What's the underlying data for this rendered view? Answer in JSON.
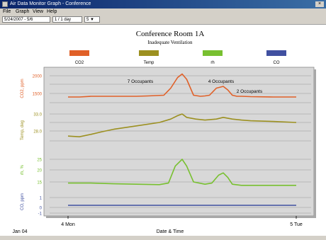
{
  "window": {
    "title": "Air Data Monitor Graph - Conference"
  },
  "menu": {
    "items": [
      "File",
      "Graph",
      "View",
      "Help"
    ]
  },
  "toolbar": {
    "date_value": "5/24/2007 - 5/6",
    "zoom_value": "1 / 1 day",
    "extra": "5 ▼"
  },
  "chart_data": {
    "type": "line",
    "title": "Conference Room 1A",
    "subtitle": "Inadequate Ventilation",
    "xlabel": "Date & Time",
    "x_date_label": "Jan 04",
    "x_ticks": [
      "4 Mon",
      "5 Tue"
    ],
    "legend": [
      "CO2",
      "Temp",
      "rh",
      "CO"
    ],
    "colors": {
      "CO2": "#e06028",
      "Temp": "#9c9020",
      "rh": "#78c030",
      "CO": "#4050a0"
    },
    "panels": [
      {
        "name": "CO2",
        "ylabel": "CO2, ppm",
        "ticks": [
          "2000",
          "1500"
        ],
        "ylim": [
          1200,
          2300
        ]
      },
      {
        "name": "Temp",
        "ylabel": "Temp, deg",
        "ticks": [
          "33.0",
          "28.0"
        ],
        "ylim": [
          24,
          36
        ]
      },
      {
        "name": "rh",
        "ylabel": "rh, %",
        "ticks": [
          "25",
          "20",
          "15"
        ],
        "ylim": [
          10,
          30
        ]
      },
      {
        "name": "CO",
        "ylabel": "CO, ppm",
        "ticks": [
          "1",
          "0",
          "-1"
        ],
        "ylim": [
          -1,
          1.5
        ]
      }
    ],
    "series": [
      {
        "name": "CO2",
        "x": [
          0,
          0.05,
          0.1,
          0.2,
          0.3,
          0.35,
          0.42,
          0.45,
          0.48,
          0.5,
          0.52,
          0.55,
          0.58,
          0.6,
          0.62,
          0.65,
          0.68,
          0.7,
          0.72,
          0.74,
          0.76,
          0.8,
          0.9,
          1.0
        ],
        "values": [
          1400,
          1400,
          1420,
          1420,
          1420,
          1430,
          1450,
          1650,
          1950,
          2050,
          1900,
          1450,
          1420,
          1430,
          1450,
          1650,
          1700,
          1600,
          1450,
          1420,
          1420,
          1410,
          1400,
          1400
        ]
      },
      {
        "name": "Temp",
        "x": [
          0,
          0.05,
          0.1,
          0.15,
          0.2,
          0.3,
          0.4,
          0.45,
          0.48,
          0.5,
          0.52,
          0.56,
          0.6,
          0.65,
          0.68,
          0.72,
          0.76,
          0.8,
          0.9,
          1.0
        ],
        "values": [
          26.5,
          26.3,
          27,
          27.8,
          28.5,
          29.5,
          30.5,
          31.5,
          32.5,
          33,
          32,
          31.5,
          31.2,
          31.5,
          32,
          31.5,
          31.2,
          31,
          30.8,
          30.5
        ]
      },
      {
        "name": "rh",
        "x": [
          0,
          0.1,
          0.2,
          0.3,
          0.4,
          0.44,
          0.47,
          0.5,
          0.52,
          0.55,
          0.6,
          0.63,
          0.66,
          0.68,
          0.7,
          0.72,
          0.76,
          0.8,
          0.9,
          1.0
        ],
        "values": [
          14.5,
          14.5,
          14.2,
          14,
          13.8,
          14.5,
          22,
          25,
          22,
          15,
          14,
          14.5,
          18,
          19,
          17,
          14,
          13.5,
          13.5,
          13.5,
          13.5
        ]
      },
      {
        "name": "CO",
        "x": [
          0,
          1.0
        ],
        "values": [
          0,
          0
        ]
      }
    ],
    "annotations": [
      "7 Occupants",
      "4 Occupants",
      "2 Occupants"
    ],
    "grid": true
  }
}
